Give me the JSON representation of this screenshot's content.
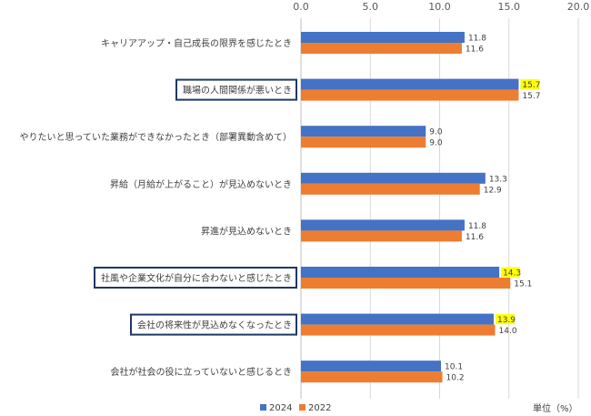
{
  "chart_data": {
    "type": "bar",
    "orientation": "horizontal",
    "categories": [
      "キャリアアップ・自己成長の限界を感じたとき",
      "職場の人間関係が悪いとき",
      "やりたいと思っていた業務ができなかったとき（部署異動含めて）",
      "昇給（月給が上がること）が見込めないとき",
      "昇進が見込めないとき",
      "社風や企業文化が自分に合わないと感じたとき",
      "会社の将来性が見込めなくなったとき",
      "会社が社会の役に立っていないと感じるとき"
    ],
    "series": [
      {
        "name": "2024",
        "color": "#4472C4",
        "values": [
          11.8,
          15.7,
          9.0,
          13.3,
          11.8,
          14.3,
          13.9,
          10.1
        ]
      },
      {
        "name": "2022",
        "color": "#ED7D31",
        "values": [
          11.6,
          15.7,
          9.0,
          12.9,
          11.6,
          15.1,
          14.0,
          10.2
        ]
      }
    ],
    "value_labels": {
      "2024": [
        "11.8",
        "15.7",
        "9.0",
        "13.3",
        "11.8",
        "14.3",
        "13.9",
        "10.1"
      ],
      "2022": [
        "11.6",
        "15.7",
        "9.0",
        "12.9",
        "11.6",
        "15.1",
        "14.0",
        "10.2"
      ]
    },
    "xlim": [
      0,
      20
    ],
    "xticks": [
      "0.0",
      "5.0",
      "10.0",
      "15.0",
      "20.0"
    ],
    "x_axis_position": "top",
    "grid": true,
    "legend_position": "bottom-left",
    "unit_label": "単位（%）",
    "highlighted_categories": [
      1,
      5,
      6
    ],
    "highlighted_2024_labels": [
      1,
      5,
      6
    ],
    "highlight_colors": {
      "box_border": "#1F3864",
      "label_background": "#FFFF00"
    }
  }
}
